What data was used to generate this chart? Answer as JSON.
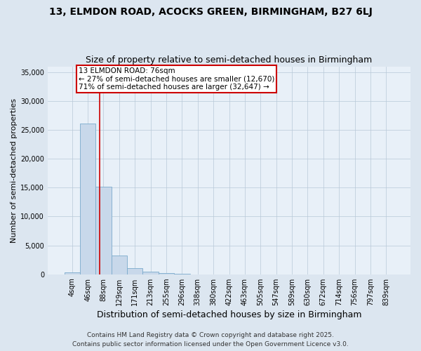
{
  "title": "13, ELMDON ROAD, ACOCKS GREEN, BIRMINGHAM, B27 6LJ",
  "subtitle": "Size of property relative to semi-detached houses in Birmingham",
  "xlabel": "Distribution of semi-detached houses by size in Birmingham",
  "ylabel": "Number of semi-detached properties",
  "bin_labels": [
    "4sqm",
    "46sqm",
    "88sqm",
    "129sqm",
    "171sqm",
    "213sqm",
    "255sqm",
    "296sqm",
    "338sqm",
    "380sqm",
    "422sqm",
    "463sqm",
    "505sqm",
    "547sqm",
    "589sqm",
    "630sqm",
    "672sqm",
    "714sqm",
    "756sqm",
    "797sqm",
    "839sqm"
  ],
  "bar_heights": [
    380,
    26100,
    15100,
    3200,
    1100,
    400,
    150,
    50,
    5,
    2,
    1,
    1,
    0,
    0,
    0,
    0,
    0,
    0,
    0,
    0,
    0
  ],
  "bar_color": "#c8d8ea",
  "bar_edge_color": "#7aaacc",
  "property_line_x": 1.74,
  "annotation_title": "13 ELMDON ROAD: 76sqm",
  "annotation_line1": "← 27% of semi-detached houses are smaller (12,670)",
  "annotation_line2": "71% of semi-detached houses are larger (32,647) →",
  "annotation_box_color": "#ffffff",
  "annotation_box_edge": "#cc0000",
  "vline_color": "#cc0000",
  "ylim": [
    0,
    36000
  ],
  "yticks": [
    0,
    5000,
    10000,
    15000,
    20000,
    25000,
    30000,
    35000
  ],
  "footer_line1": "Contains HM Land Registry data © Crown copyright and database right 2025.",
  "footer_line2": "Contains public sector information licensed under the Open Government Licence v3.0.",
  "background_color": "#dce6f0",
  "plot_background_color": "#e8f0f8",
  "grid_color": "#b8c8d8",
  "title_fontsize": 10,
  "subtitle_fontsize": 9,
  "xlabel_fontsize": 9,
  "ylabel_fontsize": 8,
  "tick_fontsize": 7,
  "annotation_fontsize": 7.5,
  "footer_fontsize": 6.5
}
